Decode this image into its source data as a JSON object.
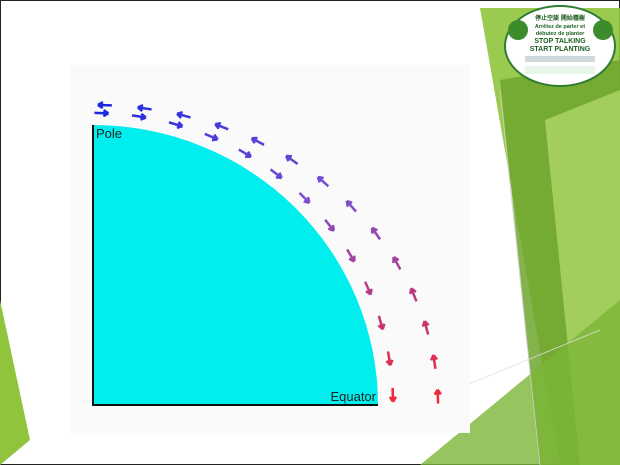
{
  "diagram": {
    "pole": "Pole",
    "equator": "Equator"
  },
  "logo": {
    "line1": "停止空談 開始種樹",
    "line2": "Arrêtez de parler et",
    "line3": "débutez de planter",
    "line4": "STOP TALKING",
    "line5": "START PLANTING"
  }
}
